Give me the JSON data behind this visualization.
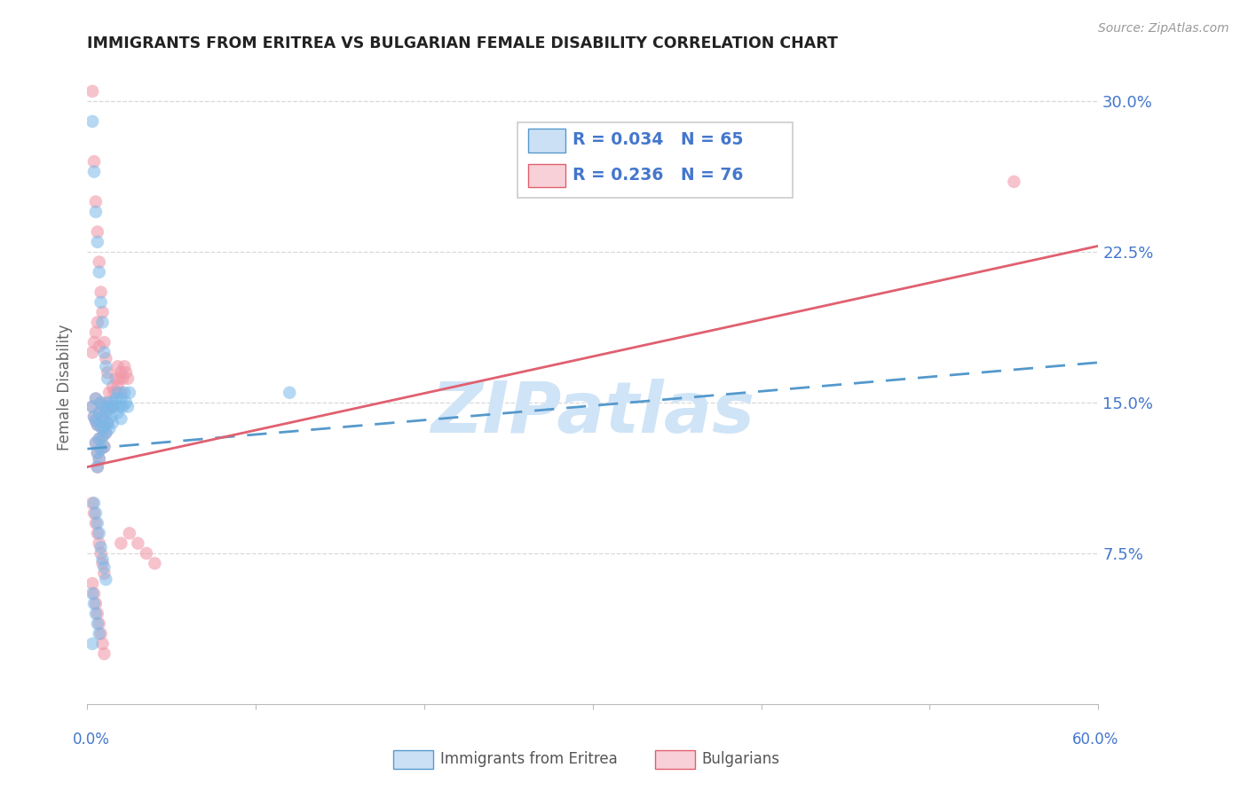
{
  "title": "IMMIGRANTS FROM ERITREA VS BULGARIAN FEMALE DISABILITY CORRELATION CHART",
  "source": "Source: ZipAtlas.com",
  "ylabel": "Female Disability",
  "ytick_labels": [
    "30.0%",
    "22.5%",
    "15.0%",
    "7.5%"
  ],
  "ytick_values": [
    0.3,
    0.225,
    0.15,
    0.075
  ],
  "xlim": [
    0.0,
    0.6
  ],
  "ylim": [
    0.0,
    0.315
  ],
  "legend_label1": "Immigrants from Eritrea",
  "legend_label2": "Bulgarians",
  "color_blue": "#7ab8e8",
  "color_pink": "#f09aaa",
  "color_blue_line": "#5599cc",
  "color_pink_line": "#e06070",
  "watermark": "ZIPatlas",
  "watermark_color": "#d0e4f7",
  "background_color": "#ffffff",
  "grid_color": "#d8d8d8",
  "axis_label_color": "#4477cc",
  "title_color": "#222222",
  "blue_scatter_x": [
    0.003,
    0.004,
    0.005,
    0.005,
    0.005,
    0.006,
    0.006,
    0.006,
    0.007,
    0.007,
    0.007,
    0.008,
    0.008,
    0.008,
    0.009,
    0.009,
    0.01,
    0.01,
    0.01,
    0.011,
    0.011,
    0.012,
    0.012,
    0.013,
    0.013,
    0.014,
    0.015,
    0.015,
    0.016,
    0.017,
    0.018,
    0.018,
    0.019,
    0.02,
    0.02,
    0.021,
    0.022,
    0.023,
    0.024,
    0.025,
    0.003,
    0.004,
    0.005,
    0.006,
    0.007,
    0.008,
    0.009,
    0.01,
    0.011,
    0.012,
    0.004,
    0.005,
    0.006,
    0.007,
    0.008,
    0.009,
    0.01,
    0.011,
    0.003,
    0.004,
    0.005,
    0.006,
    0.007,
    0.12,
    0.003
  ],
  "blue_scatter_y": [
    0.148,
    0.143,
    0.152,
    0.141,
    0.13,
    0.139,
    0.125,
    0.118,
    0.145,
    0.132,
    0.122,
    0.15,
    0.138,
    0.127,
    0.143,
    0.133,
    0.148,
    0.138,
    0.128,
    0.145,
    0.135,
    0.15,
    0.14,
    0.147,
    0.137,
    0.143,
    0.15,
    0.14,
    0.148,
    0.152,
    0.155,
    0.145,
    0.148,
    0.152,
    0.142,
    0.148,
    0.155,
    0.15,
    0.148,
    0.155,
    0.29,
    0.265,
    0.245,
    0.23,
    0.215,
    0.2,
    0.19,
    0.175,
    0.168,
    0.162,
    0.1,
    0.095,
    0.09,
    0.085,
    0.078,
    0.072,
    0.068,
    0.062,
    0.055,
    0.05,
    0.045,
    0.04,
    0.035,
    0.155,
    0.03
  ],
  "pink_scatter_x": [
    0.003,
    0.004,
    0.005,
    0.005,
    0.005,
    0.006,
    0.006,
    0.006,
    0.007,
    0.007,
    0.007,
    0.008,
    0.008,
    0.008,
    0.009,
    0.009,
    0.01,
    0.01,
    0.01,
    0.011,
    0.011,
    0.012,
    0.012,
    0.013,
    0.014,
    0.015,
    0.015,
    0.016,
    0.017,
    0.018,
    0.018,
    0.019,
    0.02,
    0.02,
    0.021,
    0.022,
    0.023,
    0.024,
    0.003,
    0.004,
    0.005,
    0.006,
    0.007,
    0.008,
    0.009,
    0.01,
    0.011,
    0.012,
    0.003,
    0.004,
    0.005,
    0.006,
    0.007,
    0.008,
    0.009,
    0.01,
    0.003,
    0.004,
    0.005,
    0.006,
    0.007,
    0.008,
    0.009,
    0.01,
    0.02,
    0.025,
    0.03,
    0.035,
    0.04,
    0.55,
    0.003,
    0.004,
    0.005,
    0.006,
    0.007
  ],
  "pink_scatter_y": [
    0.148,
    0.143,
    0.152,
    0.141,
    0.13,
    0.139,
    0.125,
    0.118,
    0.145,
    0.132,
    0.122,
    0.15,
    0.138,
    0.127,
    0.143,
    0.133,
    0.148,
    0.138,
    0.128,
    0.145,
    0.135,
    0.15,
    0.14,
    0.155,
    0.148,
    0.158,
    0.148,
    0.155,
    0.162,
    0.168,
    0.158,
    0.162,
    0.165,
    0.155,
    0.162,
    0.168,
    0.165,
    0.162,
    0.305,
    0.27,
    0.25,
    0.235,
    0.22,
    0.205,
    0.195,
    0.18,
    0.172,
    0.165,
    0.1,
    0.095,
    0.09,
    0.085,
    0.08,
    0.075,
    0.07,
    0.065,
    0.06,
    0.055,
    0.05,
    0.045,
    0.04,
    0.035,
    0.03,
    0.025,
    0.08,
    0.085,
    0.08,
    0.075,
    0.07,
    0.26,
    0.175,
    0.18,
    0.185,
    0.19,
    0.178
  ],
  "blue_line_x": [
    0.0,
    0.6
  ],
  "blue_line_y": [
    0.127,
    0.17
  ],
  "pink_line_x": [
    0.0,
    0.6
  ],
  "pink_line_y": [
    0.118,
    0.228
  ]
}
